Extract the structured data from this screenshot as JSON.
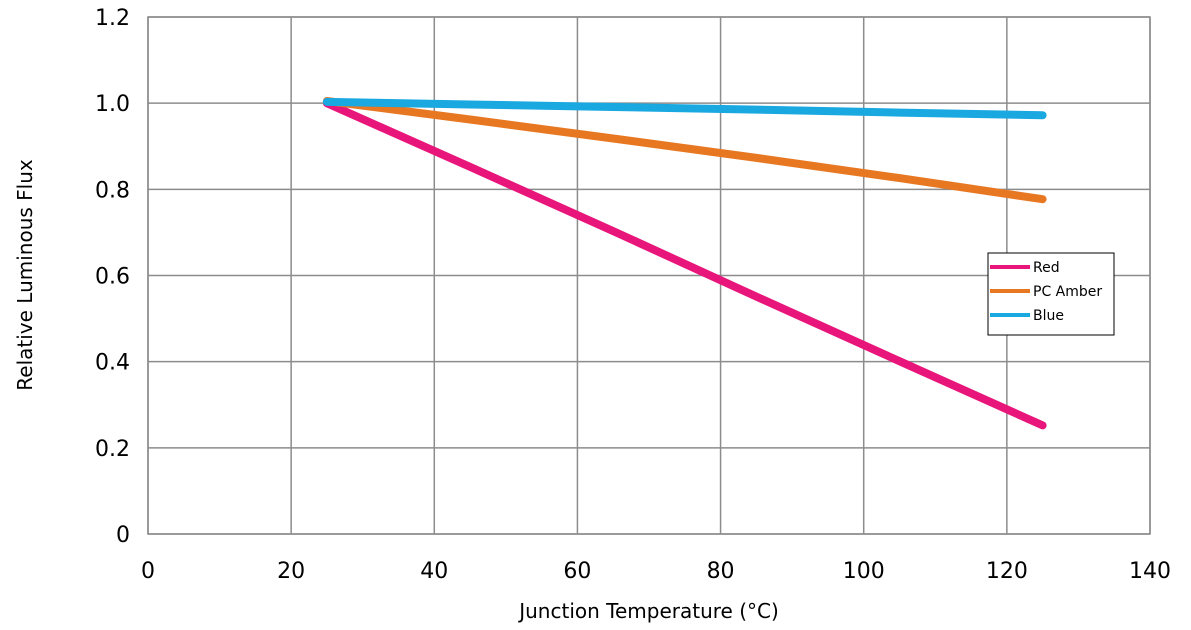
{
  "chart_data": {
    "type": "line",
    "title": "",
    "xlabel": "Junction Temperature (°C)",
    "ylabel": "Relative Luminous Flux",
    "xlim": [
      0,
      140
    ],
    "ylim": [
      0,
      1.2
    ],
    "x_ticks": [
      "0",
      "20",
      "40",
      "60",
      "80",
      "100",
      "120",
      "140"
    ],
    "y_ticks": [
      "0",
      "0.2",
      "0.4",
      "0.6",
      "0.8",
      "1.0",
      "1.2"
    ],
    "grid": true,
    "legend_position": "right",
    "series": [
      {
        "name": "Red",
        "color": "#e8157a",
        "x": [
          25,
          45,
          65,
          85,
          105,
          125
        ],
        "y": [
          1.0,
          0.852,
          0.703,
          0.551,
          0.401,
          0.252
        ]
      },
      {
        "name": "PC Amber",
        "color": "#e87722",
        "x": [
          25,
          45,
          65,
          85,
          105,
          125
        ],
        "y": [
          1.005,
          0.962,
          0.918,
          0.873,
          0.826,
          0.777
        ]
      },
      {
        "name": "Blue",
        "color": "#19a8e0",
        "x": [
          25,
          45,
          65,
          85,
          105,
          125
        ],
        "y": [
          1.003,
          0.997,
          0.991,
          0.985,
          0.978,
          0.972
        ]
      }
    ]
  }
}
